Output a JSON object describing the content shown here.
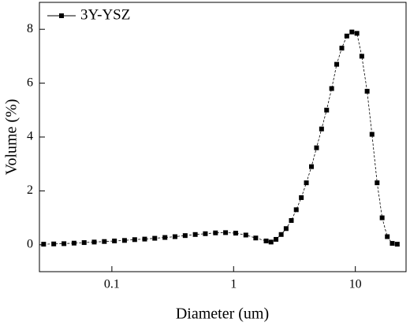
{
  "chart_data": {
    "type": "line",
    "x_label": "Diameter (um)",
    "y_label": "Volume (%)",
    "x_scale": "log",
    "grid": false,
    "legend_position": "upper left",
    "xlim": [
      0.0254,
      26.1
    ],
    "xticks": [
      0.1,
      1,
      10
    ],
    "ylim": [
      -1,
      9
    ],
    "yticks": [
      0,
      2,
      4,
      6,
      8
    ],
    "x": [
      0.0275,
      0.0333,
      0.0404,
      0.0489,
      0.0592,
      0.0716,
      0.0867,
      0.105,
      0.127,
      0.154,
      0.186,
      0.225,
      0.273,
      0.33,
      0.4,
      0.484,
      0.586,
      0.71,
      0.859,
      1.04,
      1.26,
      1.52,
      1.85,
      2.03,
      2.23,
      2.46,
      2.7,
      2.98,
      3.27,
      3.6,
      3.96,
      4.36,
      4.8,
      5.28,
      5.81,
      6.39,
      7.03,
      7.74,
      8.51,
      9.37,
      10.3,
      11.3,
      12.5,
      13.7,
      15.1,
      16.6,
      18.3,
      20.1,
      22.1
    ],
    "series": [
      {
        "name": "3Y-YSZ",
        "color": "#000000",
        "values": [
          0.02,
          0.03,
          0.04,
          0.06,
          0.08,
          0.1,
          0.12,
          0.14,
          0.16,
          0.19,
          0.21,
          0.24,
          0.27,
          0.3,
          0.34,
          0.38,
          0.41,
          0.44,
          0.45,
          0.43,
          0.36,
          0.25,
          0.14,
          0.1,
          0.2,
          0.38,
          0.6,
          0.9,
          1.3,
          1.75,
          2.3,
          2.9,
          3.6,
          4.3,
          5.0,
          5.8,
          6.7,
          7.3,
          7.75,
          7.9,
          7.85,
          7.0,
          5.7,
          4.1,
          2.3,
          1.0,
          0.3,
          0.05,
          0.02
        ]
      }
    ]
  }
}
